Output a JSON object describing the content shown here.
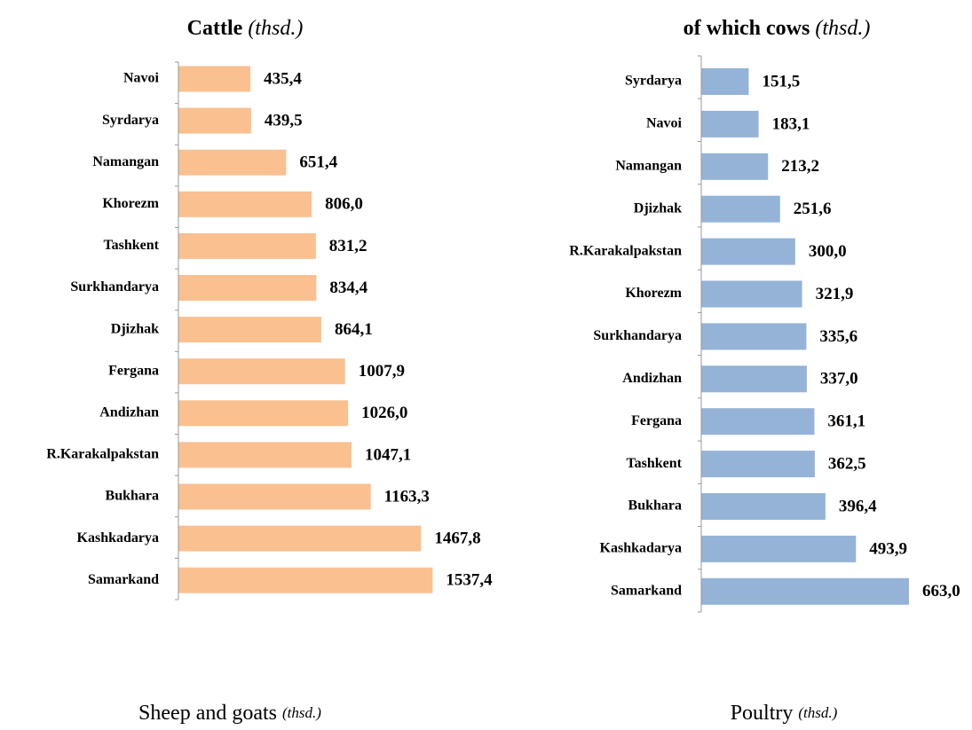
{
  "chart_data": [
    {
      "type": "bar",
      "title": "Cattle",
      "unit": "(thsd.)",
      "color": "#fac090",
      "xlim": [
        0,
        1600
      ],
      "categories": [
        "Navoi",
        "Syrdarya",
        "Namangan",
        "Khorezm",
        "Tashkent",
        "Surkhandarya",
        "Djizhak",
        "Fergana",
        "Andizhan",
        "R.Karakalpakstan",
        "Bukhara",
        "Kashkadarya",
        "Samarkand"
      ],
      "values": [
        435.4,
        439.5,
        651.4,
        806.0,
        831.2,
        834.4,
        864.1,
        1007.9,
        1026.0,
        1047.1,
        1163.3,
        1467.8,
        1537.4
      ],
      "value_labels": [
        "435,4",
        "439,5",
        "651,4",
        "806,0",
        "831,2",
        "834,4",
        "864,1",
        "1007,9",
        "1026,0",
        "1047,1",
        "1163,3",
        "1467,8",
        "1537,4"
      ]
    },
    {
      "type": "bar",
      "title": "of which cows",
      "unit": "(thsd.)",
      "color": "#95b3d7",
      "xlim": [
        0,
        700
      ],
      "categories": [
        "Syrdarya",
        "Navoi",
        "Namangan",
        "Djizhak",
        "R.Karakalpakstan",
        "Khorezm",
        "Surkhandarya",
        "Andizhan",
        "Fergana",
        "Tashkent",
        "Bukhara",
        "Kashkadarya",
        "Samarkand"
      ],
      "values": [
        151.5,
        183.1,
        213.2,
        251.6,
        300.0,
        321.9,
        335.6,
        337.0,
        361.1,
        362.5,
        396.4,
        493.9,
        663.0
      ],
      "value_labels": [
        "151,5",
        "183,1",
        "213,2",
        "251,6",
        "300,0",
        "321,9",
        "335,6",
        "337,0",
        "361,1",
        "362,5",
        "396,4",
        "493,9",
        "663,0"
      ]
    },
    {
      "type": "bar",
      "title": "Sheep and goats",
      "unit": "(thsd.)"
    },
    {
      "type": "bar",
      "title": "Poultry",
      "unit": "(thsd.)"
    }
  ]
}
